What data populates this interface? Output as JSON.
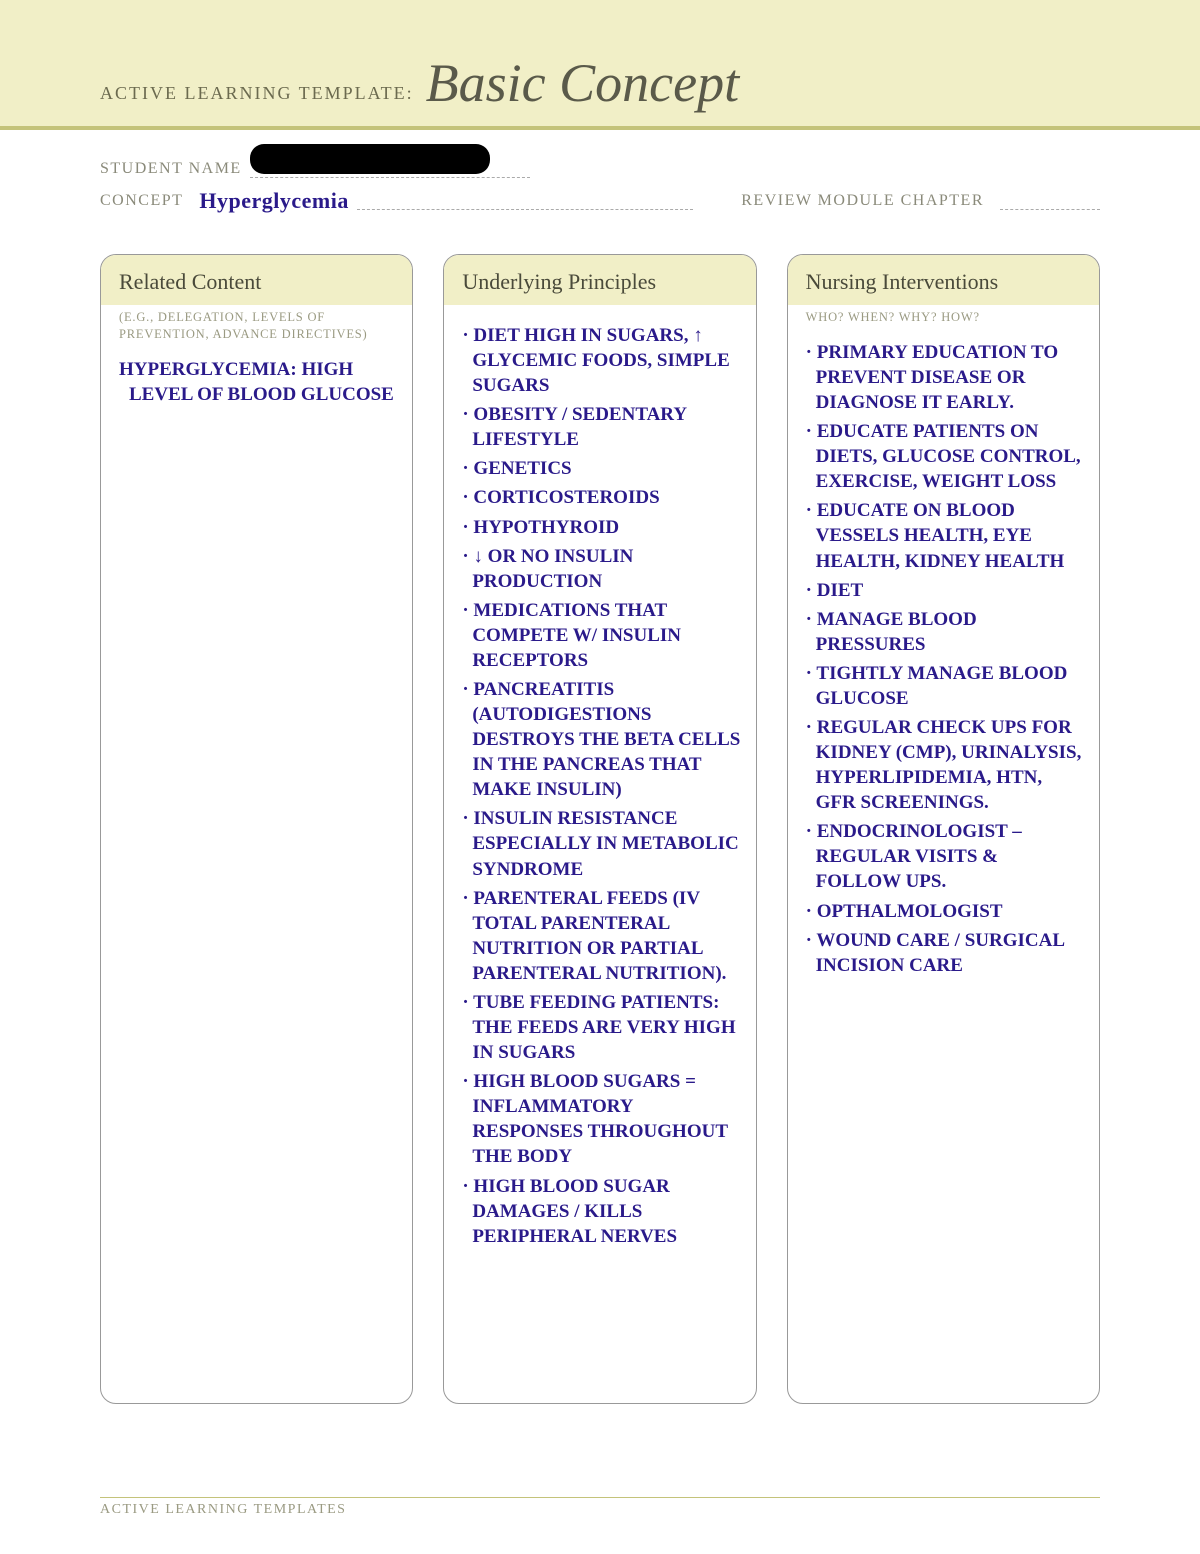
{
  "colors": {
    "banner_bg": "#f1efc7",
    "banner_rule": "#c4c37a",
    "label_text": "#8a8a7a",
    "title_text": "#5a5a4a",
    "handwriting": "#2a1a8a",
    "card_border": "#999999",
    "page_bg": "#ffffff"
  },
  "banner": {
    "label": "ACTIVE LEARNING TEMPLATE:",
    "title": "Basic Concept"
  },
  "meta": {
    "student_label": "STUDENT NAME",
    "student_redacted": true,
    "concept_label": "CONCEPT",
    "concept_value": "Hyperglycemia",
    "review_label": "REVIEW MODULE CHAPTER",
    "review_value": ""
  },
  "columns": [
    {
      "title": "Related Content",
      "subtitle": "(E.G., DELEGATION, LEVELS OF PREVENTION, ADVANCE DIRECTIVES)",
      "items": [
        "Hyperglycemia: high level of blood glucose"
      ]
    },
    {
      "title": "Underlying Principles",
      "subtitle": "",
      "items": [
        "· Diet high in sugars, ↑ glycemic foods, simple sugars",
        "· Obesity / sedentary lifestyle",
        "· Genetics",
        "· Corticosteroids",
        "· Hypothyroid",
        "· ↓ or no insulin production",
        "· Medications that compete w/ insulin receptors",
        "· Pancreatitis (autodigestions destroys the beta cells in the pancreas that make insulin)",
        "· Insulin resistance especially in metabolic syndrome",
        "· Parenteral feeds (IV total parenteral nutrition or partial parenteral nutrition).",
        "· Tube feeding patients: the feeds are very high in sugars",
        "· High blood sugars = inflammatory responses throughout the body",
        "· High blood sugar damages / kills peripheral nerves"
      ]
    },
    {
      "title": "Nursing Interventions",
      "subtitle": "WHO? WHEN? WHY? HOW?",
      "items": [
        "· Primary education to prevent disease or diagnose it early.",
        "· Educate patients on diets, glucose control, exercise, weight loss",
        "· Educate on blood vessels health, eye health, kidney health",
        "· Diet",
        "· Manage blood pressures",
        "· Tightly manage blood glucose",
        "· Regular check ups for kidney (CMP), urinalysis, hyperlipidemia, HTN, GFR screenings.",
        "· Endocrinologist – regular visits & follow ups.",
        "· Opthalmologist",
        "· Wound care / surgical incision care"
      ]
    }
  ],
  "footer": "ACTIVE LEARNING TEMPLATES"
}
